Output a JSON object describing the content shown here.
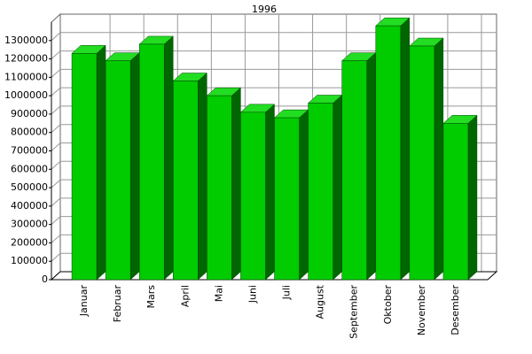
{
  "chart_data": {
    "type": "bar3d",
    "title": "1996",
    "categories": [
      "Januar",
      "Februar",
      "Mars",
      "April",
      "Mai",
      "Juni",
      "Juli",
      "August",
      "September",
      "Oktober",
      "November",
      "Desember"
    ],
    "values": [
      1230000,
      1190000,
      1280000,
      1080000,
      1000000,
      910000,
      880000,
      960000,
      1190000,
      1380000,
      1270000,
      850000
    ],
    "color": "#00cc00",
    "ylim": [
      0,
      1400000
    ],
    "yticks": [
      0,
      100000,
      200000,
      300000,
      400000,
      500000,
      600000,
      700000,
      800000,
      900000,
      1000000,
      1100000,
      1200000,
      1300000
    ],
    "grid": true
  }
}
